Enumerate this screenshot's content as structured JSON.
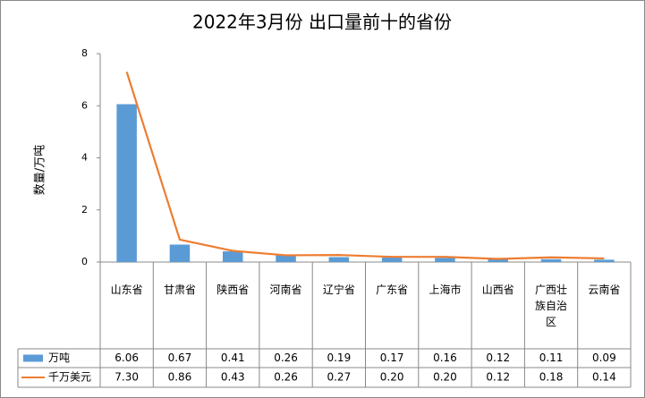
{
  "chart_data": {
    "type": "combo",
    "title": "2022年3月份 出口量前十的省份",
    "y_label": "数量/万吨",
    "categories": [
      "山东省",
      "甘肃省",
      "陕西省",
      "河南省",
      "辽宁省",
      "广东省",
      "上海市",
      "山西省",
      "广西壮族自治区",
      "云南省"
    ],
    "series": [
      {
        "name": "万吨",
        "type": "bar",
        "color": "#5b9bd5",
        "values": [
          6.06,
          0.67,
          0.41,
          0.26,
          0.19,
          0.17,
          0.16,
          0.12,
          0.11,
          0.09
        ],
        "value_labels": [
          "6.06",
          "0.67",
          "0.41",
          "0.26",
          "0.19",
          "0.17",
          "0.16",
          "0.12",
          "0.11",
          "0.09"
        ]
      },
      {
        "name": "千万美元",
        "type": "line",
        "color": "#ed7d31",
        "values": [
          7.3,
          0.86,
          0.43,
          0.26,
          0.27,
          0.2,
          0.2,
          0.12,
          0.18,
          0.14
        ],
        "value_labels": [
          "7.30",
          "0.86",
          "0.43",
          "0.26",
          "0.27",
          "0.20",
          "0.20",
          "0.12",
          "0.18",
          "0.14"
        ]
      }
    ],
    "ylim": [
      0,
      8
    ],
    "yticks": [
      0,
      2,
      4,
      6,
      8
    ]
  }
}
